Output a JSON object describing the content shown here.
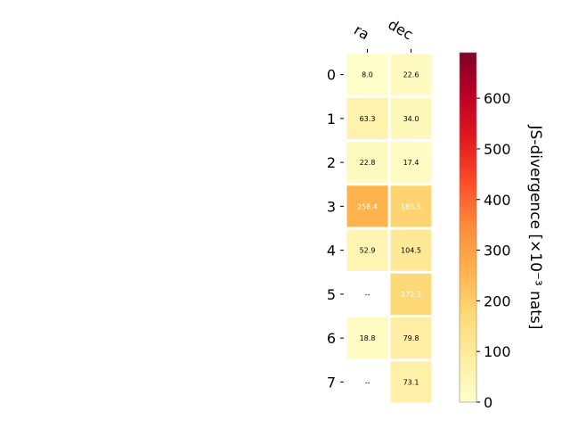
{
  "chart_data": {
    "type": "heatmap",
    "columns": [
      "ra",
      "dec"
    ],
    "rows": [
      "0",
      "1",
      "2",
      "3",
      "4",
      "5",
      "6",
      "7"
    ],
    "values": [
      [
        8.0,
        22.6
      ],
      [
        63.3,
        34.0
      ],
      [
        22.8,
        17.4
      ],
      [
        256.4,
        185.5
      ],
      [
        52.9,
        104.5
      ],
      [
        null,
        172.3
      ],
      [
        18.8,
        79.8
      ],
      [
        null,
        73.1
      ]
    ],
    "labels": [
      [
        "8.0",
        "22.6"
      ],
      [
        "63.3",
        "34.0"
      ],
      [
        "22.8",
        "17.4"
      ],
      [
        "256.4",
        "185.5"
      ],
      [
        "52.9",
        "104.5"
      ],
      [
        "--",
        "172.3"
      ],
      [
        "18.8",
        "79.8"
      ],
      [
        "--",
        "73.1"
      ]
    ],
    "colorbar": {
      "label": "JS-divergence [×10⁻³ nats]",
      "range": [
        0,
        690
      ],
      "ticks": [
        0,
        100,
        200,
        300,
        400,
        500,
        600
      ],
      "colormap": "YlOrRd"
    },
    "grid": false,
    "legend": "none"
  }
}
